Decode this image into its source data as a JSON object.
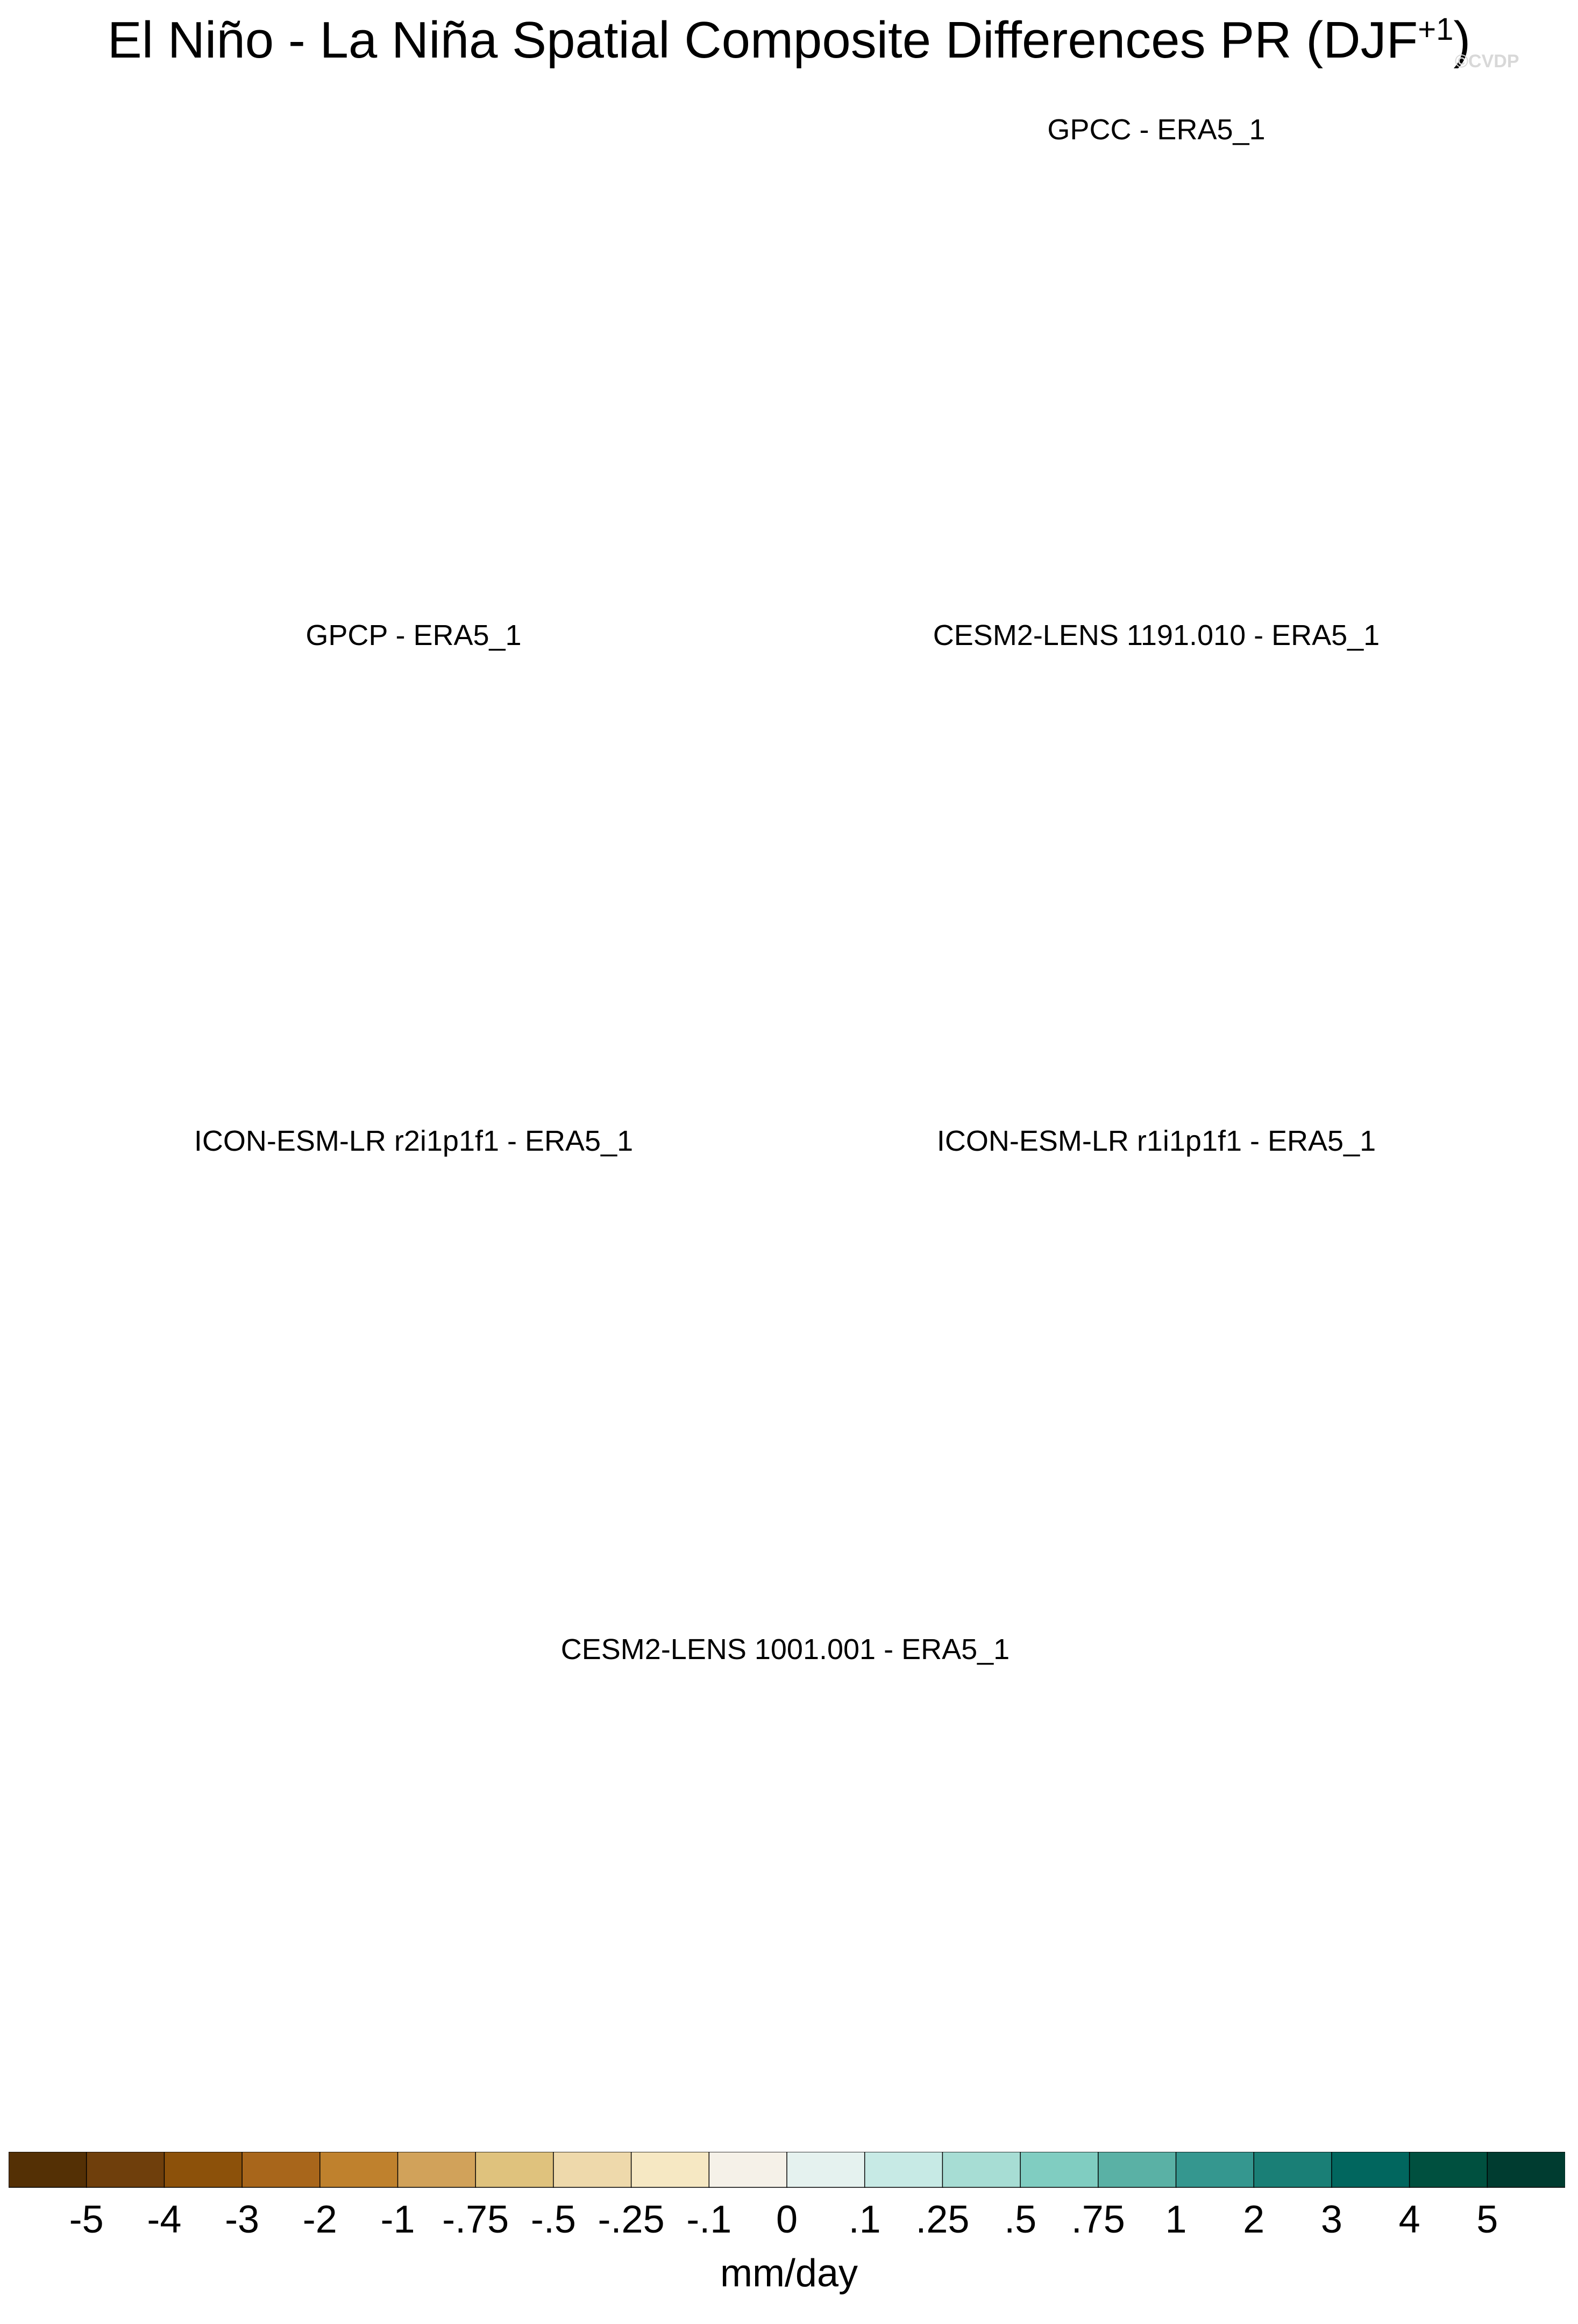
{
  "title": {
    "main": "El Niño - La Niña Spatial Composite Differences PR (DJF",
    "superscript": "+1",
    "close": ")",
    "watermark": "©CVDP"
  },
  "panels": [
    {
      "title": "GPCC - ERA5_1",
      "coverage": "land-only"
    },
    {
      "title": "GPCP - ERA5_1",
      "coverage": "global"
    },
    {
      "title": "CESM2-LENS 1191.010 - ERA5_1",
      "coverage": "global"
    },
    {
      "title": "ICON-ESM-LR r2i1p1f1 - ERA5_1",
      "coverage": "global"
    },
    {
      "title": "ICON-ESM-LR r1i1p1f1 - ERA5_1",
      "coverage": "global"
    },
    {
      "title": "CESM2-LENS 1001.001 - ERA5_1",
      "coverage": "global"
    }
  ],
  "map_style": {
    "projection": "Robinson (Pacific-centred)",
    "missing_color": "#e3e3e3",
    "coast_color": "#8c8c8c"
  },
  "colorbar": {
    "labels": [
      "-5",
      "-4",
      "-3",
      "-2",
      "-1",
      "-.75",
      "-.5",
      "-.25",
      "-.1",
      "0",
      ".1",
      ".25",
      ".5",
      ".75",
      "1",
      "2",
      "3",
      "4",
      "5"
    ],
    "colors": [
      "#543005",
      "#6f3f0c",
      "#8c510a",
      "#a8661b",
      "#bf812d",
      "#d1a25a",
      "#dfc27d",
      "#eed9ab",
      "#f6e8c3",
      "#f5f1e8",
      "#e5f2ef",
      "#c7eae5",
      "#a7ddd4",
      "#80cdc1",
      "#5ab1a5",
      "#35978f",
      "#1a7f76",
      "#01665e",
      "#00503f",
      "#003c30"
    ],
    "units": "mm/day"
  }
}
